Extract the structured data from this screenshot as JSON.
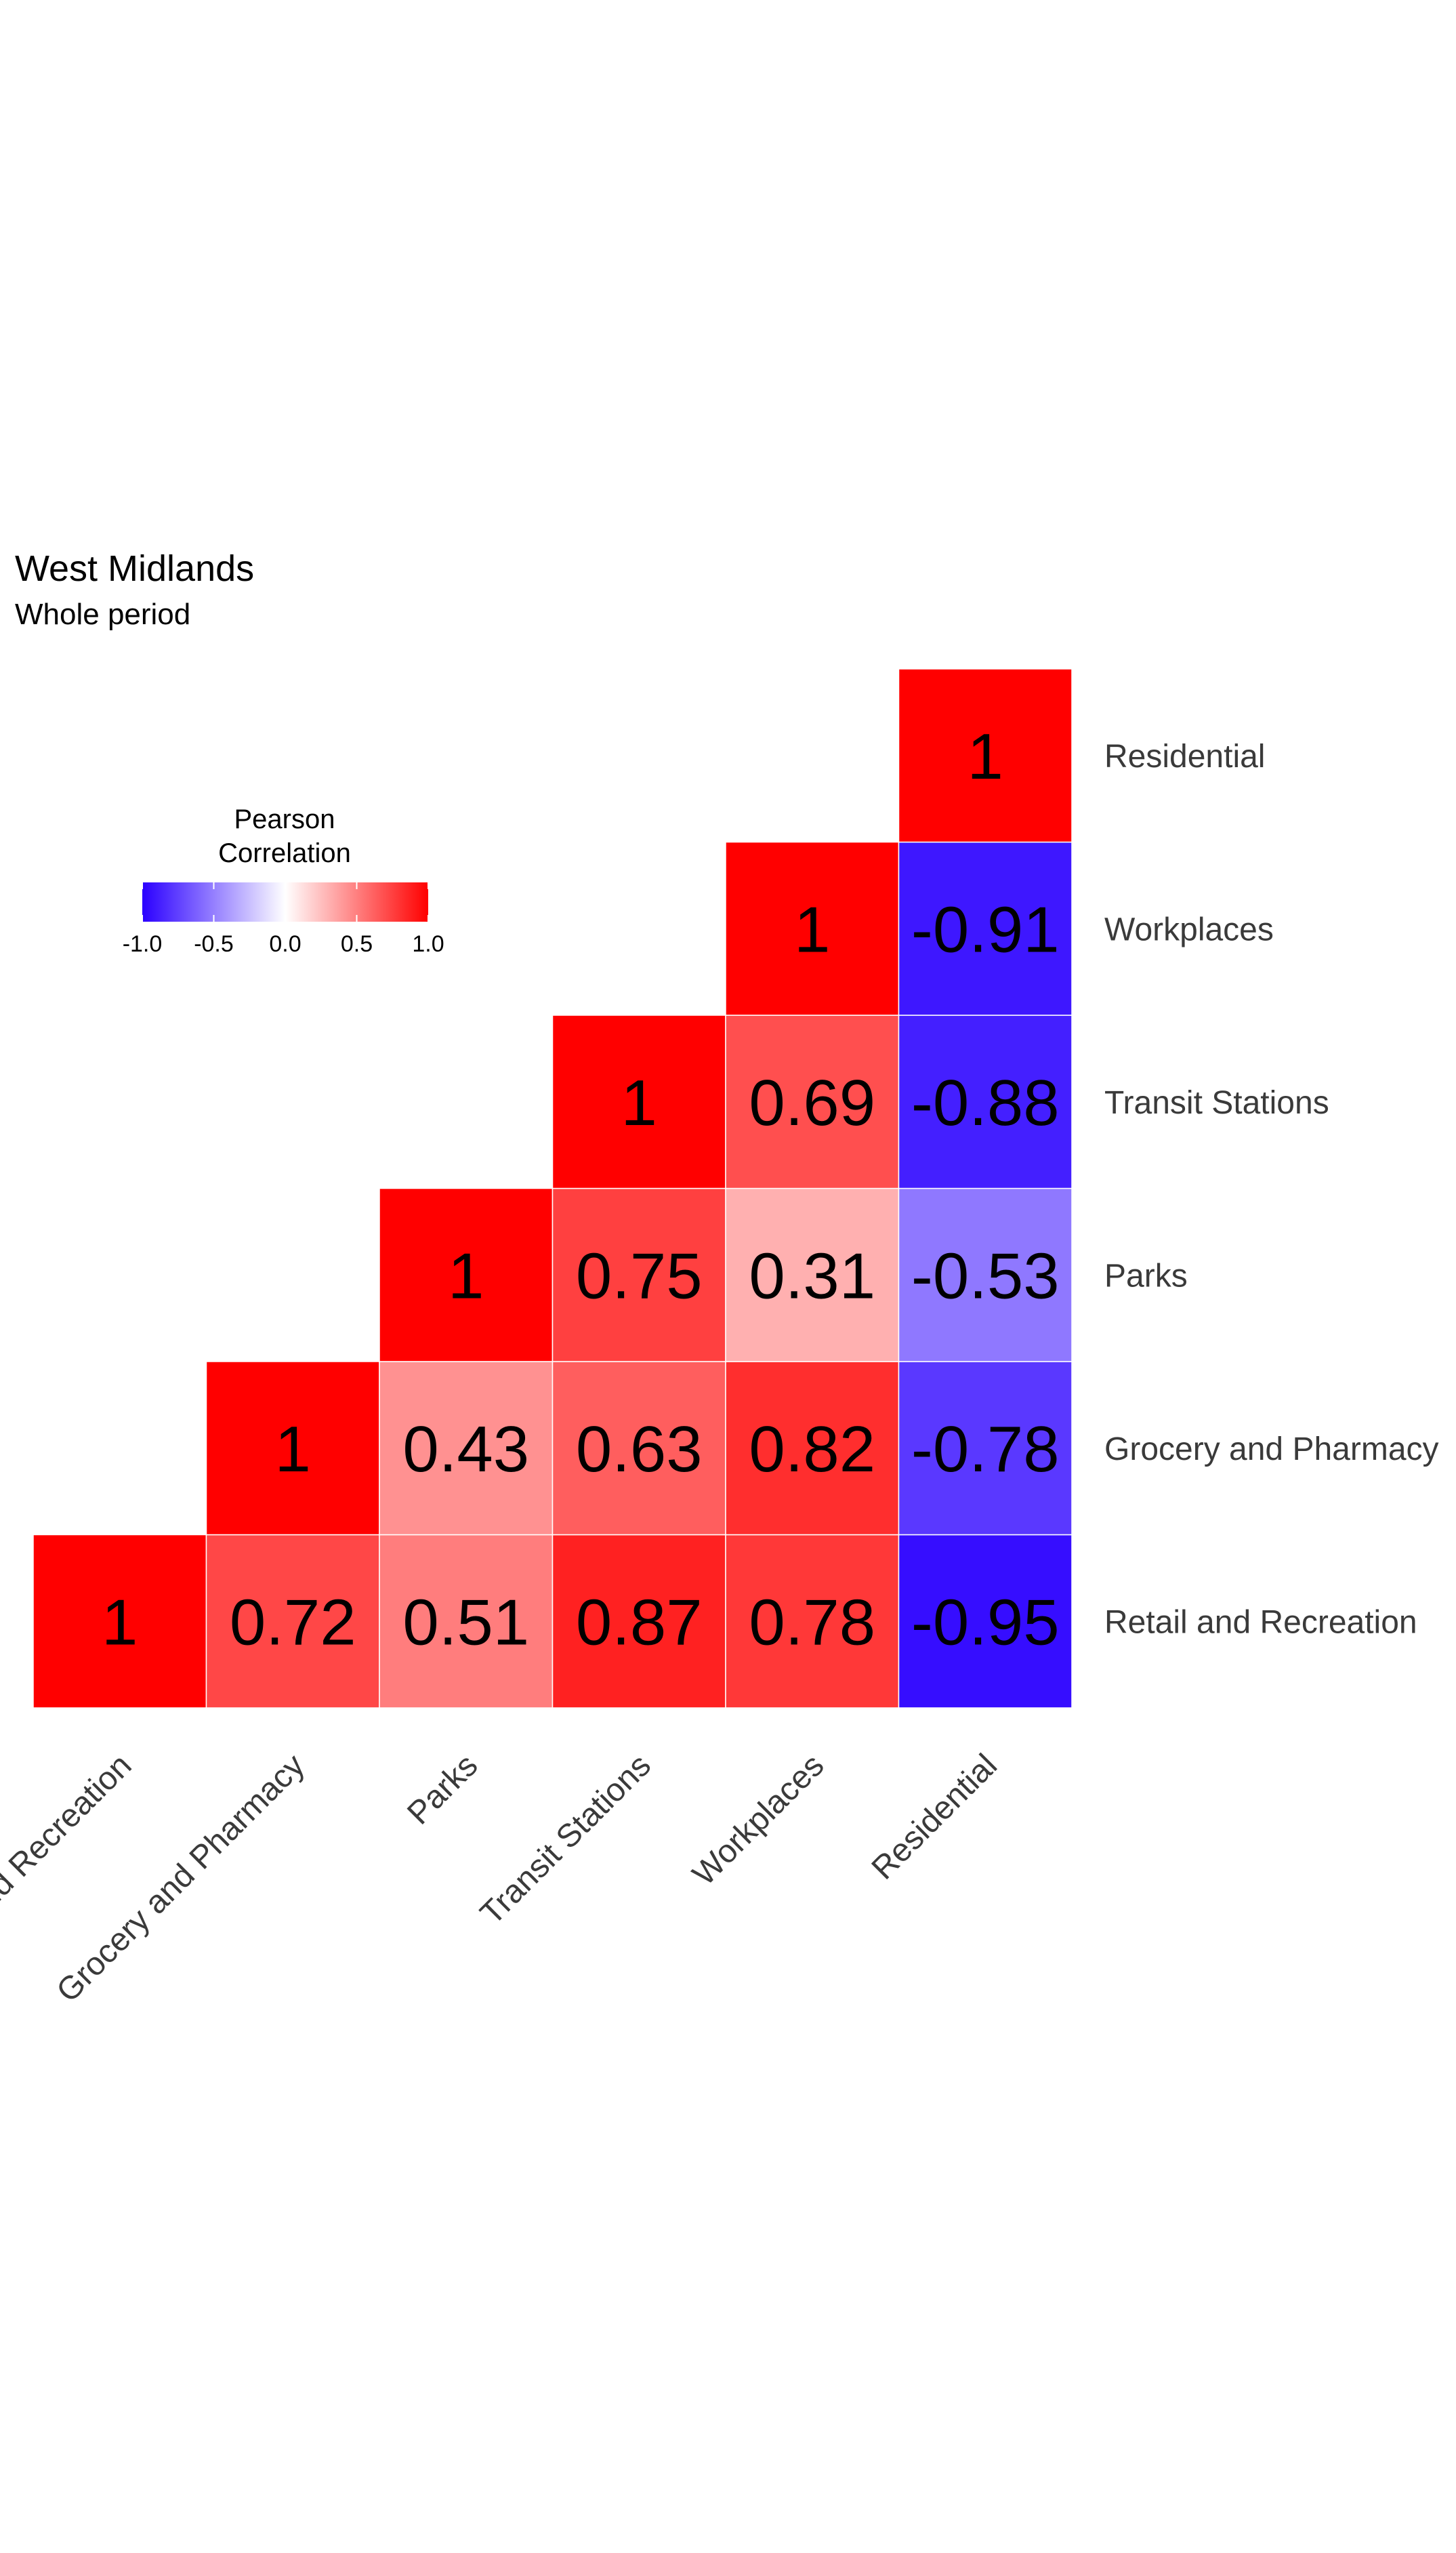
{
  "chart_data": {
    "type": "heatmap",
    "title": "West Midlands",
    "subtitle": "Whole period",
    "variables": [
      "Retail and Recreation",
      "Grocery and Pharmacy",
      "Parks",
      "Transit Stations",
      "Workplaces",
      "Residential"
    ],
    "matrix_lower_triangle": [
      [
        1,
        0.72,
        0.51,
        0.87,
        0.78,
        -0.95
      ],
      [
        null,
        1,
        0.43,
        0.63,
        0.82,
        -0.78
      ],
      [
        null,
        null,
        1,
        0.75,
        0.31,
        -0.53
      ],
      [
        null,
        null,
        null,
        1,
        0.69,
        -0.88
      ],
      [
        null,
        null,
        null,
        null,
        1,
        -0.91
      ],
      [
        null,
        null,
        null,
        null,
        null,
        1
      ]
    ],
    "cell_labels": [
      [
        "1",
        "0.72",
        "0.51",
        "0.87",
        "0.78",
        "-0.95"
      ],
      [
        null,
        "1",
        "0.43",
        "0.63",
        "0.82",
        "-0.78"
      ],
      [
        null,
        null,
        "1",
        "0.75",
        "0.31",
        "-0.53"
      ],
      [
        null,
        null,
        null,
        "1",
        "0.69",
        "-0.88"
      ],
      [
        null,
        null,
        null,
        null,
        "1",
        "-0.91"
      ],
      [
        null,
        null,
        null,
        null,
        null,
        "1"
      ]
    ],
    "legend": {
      "title_line1": "Pearson",
      "title_line2": "Correlation",
      "ticks": [
        "-1.0",
        "-0.5",
        "0.0",
        "0.5",
        "1.0"
      ],
      "tick_values": [
        -1,
        -0.5,
        0,
        0.5,
        1
      ],
      "range": [
        -1,
        1
      ],
      "placement": "top-left"
    },
    "colors": {
      "low": "#2b00ff",
      "mid": "#ffffff",
      "high": "#ff0000",
      "grid_line": "#ffffff"
    }
  }
}
